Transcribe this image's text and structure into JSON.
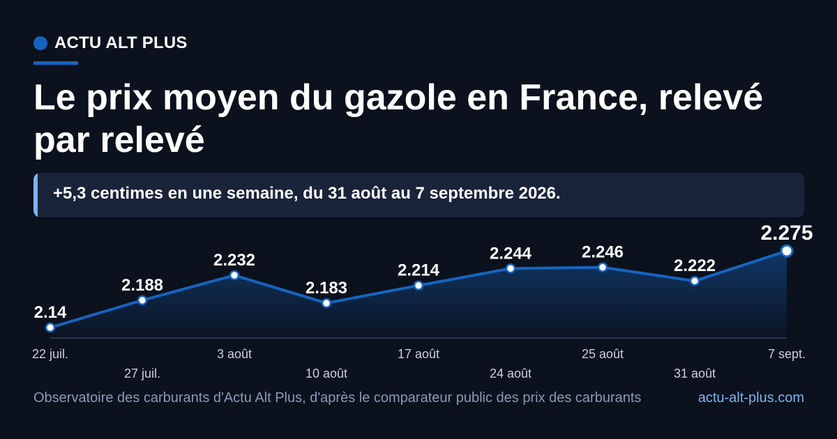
{
  "brand": {
    "name": "ACTU ALT PLUS"
  },
  "headline": "Le prix moyen du gazole en France, relevé par relevé",
  "callout": "+5,3 centimes en une semaine, du 31 août au 7 septembre 2026.",
  "footer": {
    "source": "Observatoire des carburants d'Actu Alt Plus, d'après le comparateur public des prix des carburants",
    "site": "actu-alt-plus.com"
  },
  "colors": {
    "background": "#0b111d",
    "accent": "#1565c0",
    "callout_bg": "#19233a",
    "callout_bar": "#7fb2ec",
    "muted_text": "#8a9ab5",
    "axis_label": "#c9d1dc"
  },
  "chart_data": {
    "type": "area",
    "categories": [
      "22 juil.",
      "27 juil.",
      "3 août",
      "10 août",
      "17 août",
      "24 août",
      "25 août",
      "31 août",
      "7 sept."
    ],
    "values": [
      2.14,
      2.188,
      2.232,
      2.183,
      2.214,
      2.244,
      2.246,
      2.222,
      2.275
    ],
    "data_labels": [
      "2.14",
      "2.188",
      "2.232",
      "2.183",
      "2.214",
      "2.244",
      "2.246",
      "2.222",
      "2.275"
    ],
    "title": "",
    "xlabel": "",
    "ylabel": "",
    "ylim": [
      2.12,
      2.3
    ],
    "grid": false,
    "legend": "none",
    "highlight_last": true
  }
}
